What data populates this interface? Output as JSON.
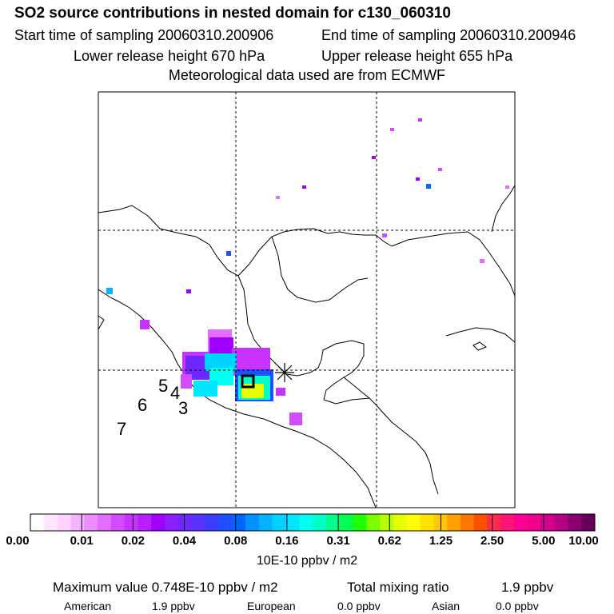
{
  "header": {
    "title": "SO2 source contributions in nested domain for c130_060310",
    "start_time": "Start time of sampling 20060310.200906",
    "end_time": "End time of sampling 20060310.200946",
    "lower_release": "Lower release height  670 hPa",
    "upper_release": "Upper release height  655 hPa",
    "met_data": "Meteorological data used are from ECMWF"
  },
  "map": {
    "day_labels": [
      "5",
      "4",
      "3",
      "6",
      "7"
    ],
    "marker": "release-location-star"
  },
  "colorbar": {
    "tick_labels": [
      "0.00",
      "0.01",
      "0.02",
      "0.04",
      "0.08",
      "0.16",
      "0.31",
      "0.62",
      "1.25",
      "2.50",
      "5.00",
      "10.00"
    ],
    "unit": "10E-10 ppbv / m2",
    "colors": [
      "#ffffff",
      "#ffe6ff",
      "#ffd2ff",
      "#f5b4ff",
      "#eb8cff",
      "#e16eff",
      "#d24bff",
      "#c832ff",
      "#b91eff",
      "#a000ff",
      "#8c1eff",
      "#6e28ff",
      "#5a32ff",
      "#3c3cff",
      "#1e50ff",
      "#0064ff",
      "#0090ff",
      "#00b4ff",
      "#00d2ff",
      "#00e6ff",
      "#00ffee",
      "#00ffc8",
      "#00ff8c",
      "#00ff50",
      "#1eff00",
      "#78ff00",
      "#b4ff00",
      "#e6ff00",
      "#ffff00",
      "#ffe100",
      "#ffc800",
      "#ffa000",
      "#ff7800",
      "#ff5000",
      "#ff2850",
      "#ff1478",
      "#ff0096",
      "#f0008c",
      "#d2008c",
      "#b40082",
      "#8c0070",
      "#64005a"
    ]
  },
  "summary": {
    "max_label": "Maximum value  0.748E-10 ppbv / m2",
    "total_label": "Total mixing ratio",
    "total_value": "1.9 ppbv"
  },
  "regions": [
    {
      "name": "American",
      "value": "1.9 ppbv"
    },
    {
      "name": "European",
      "value": "0.0 ppbv"
    },
    {
      "name": "Asian",
      "value": "0.0 ppbv"
    }
  ]
}
